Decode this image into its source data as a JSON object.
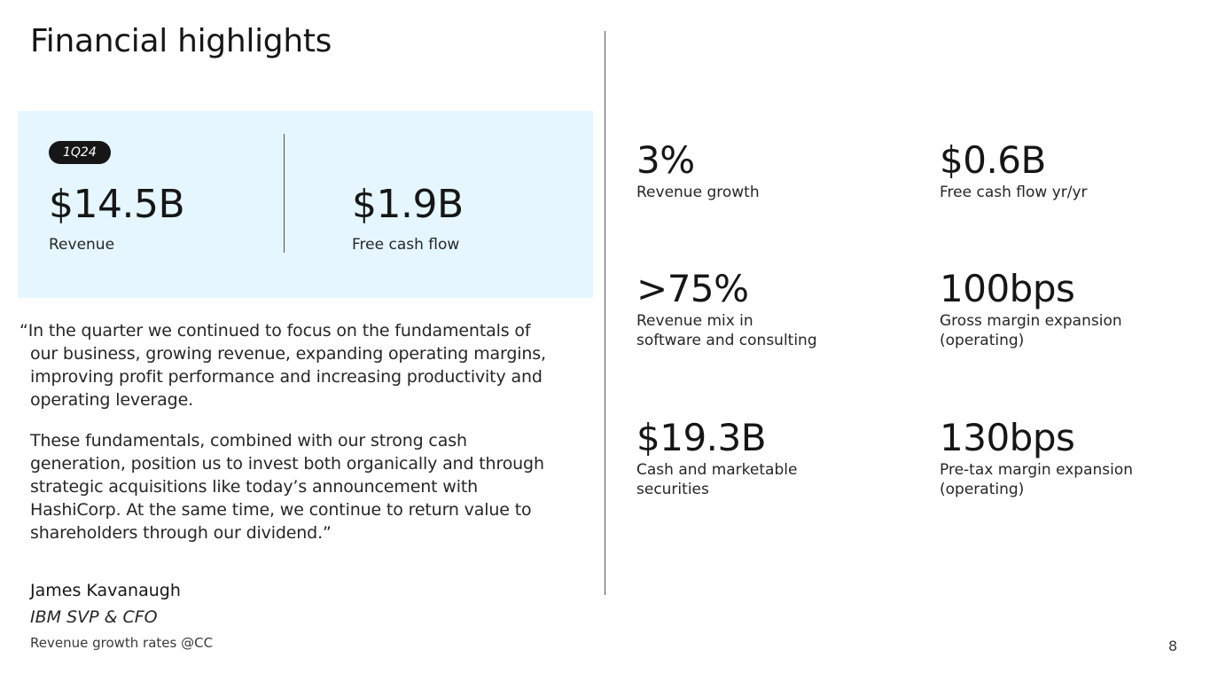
{
  "slide": {
    "title": "Financial highlights",
    "page_number": "8"
  },
  "highlight_panel": {
    "badge": "1Q24",
    "metrics": [
      {
        "value": "$14.5B",
        "label": "Revenue"
      },
      {
        "value": "$1.9B",
        "label": "Free cash flow"
      }
    ]
  },
  "quote": {
    "paragraphs": [
      "“In the quarter we continued to focus on the fundamentals of\nour business, growing revenue, expanding operating margins,\nimproving profit performance and increasing productivity and\noperating leverage.",
      "These fundamentals, combined with our strong cash\ngeneration, position us to invest both organically and through\nstrategic acquisitions like today’s announcement with\nHashiCorp. At the same time, we continue to return value to\nshareholders through our dividend.”"
    ],
    "author": "James Kavanaugh",
    "role": "IBM SVP & CFO"
  },
  "footnote": "Revenue growth rates @CC",
  "kpis": [
    {
      "value": "3%",
      "label": "Revenue growth"
    },
    {
      "value": "$0.6B",
      "label": "Free cash flow yr/yr"
    },
    {
      "value": ">75%",
      "label": "Revenue mix in\nsoftware and consulting"
    },
    {
      "value": "100bps",
      "label": "Gross margin expansion\n(operating)"
    },
    {
      "value": "$19.3B",
      "label": "Cash and marketable\nsecurities"
    },
    {
      "value": "130bps",
      "label": "Pre-tax margin expansion\n(operating)"
    }
  ]
}
